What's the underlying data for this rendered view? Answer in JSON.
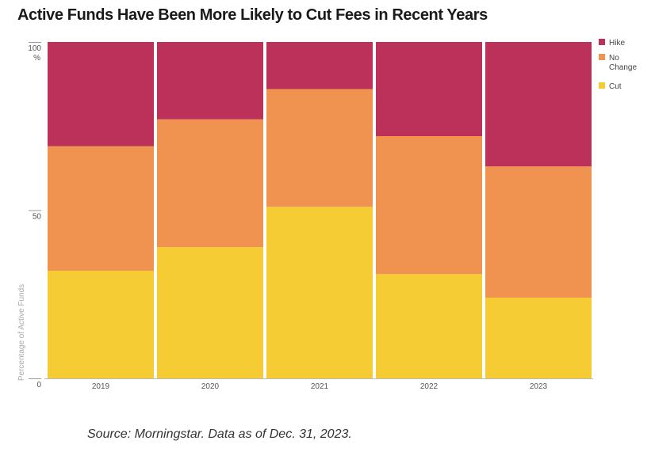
{
  "title": "Active Funds Have Been More Likely to Cut Fees in Recent Years",
  "source": "Source: Morningstar. Data as of Dec. 31, 2023.",
  "chart_data": {
    "type": "bar",
    "stacked": true,
    "ylabel": "Percentage of Active Funds",
    "y_unit_label": "%",
    "ylim": [
      0,
      100
    ],
    "yticks": [
      "0",
      "50",
      "100"
    ],
    "categories": [
      "2019",
      "2020",
      "2021",
      "2022",
      "2023"
    ],
    "series": [
      {
        "name": "Cut",
        "color": "#f5cc34",
        "values": [
          32,
          39,
          51,
          31,
          24
        ]
      },
      {
        "name": "No Change",
        "color": "#f09250",
        "values": [
          37,
          38,
          35,
          41,
          39
        ]
      },
      {
        "name": "Hike",
        "color": "#bb3159",
        "values": [
          31,
          23,
          14,
          28,
          37
        ]
      }
    ],
    "legend": {
      "position": "right",
      "order": [
        "Hike",
        "No Change",
        "Cut"
      ]
    },
    "grid": false
  }
}
